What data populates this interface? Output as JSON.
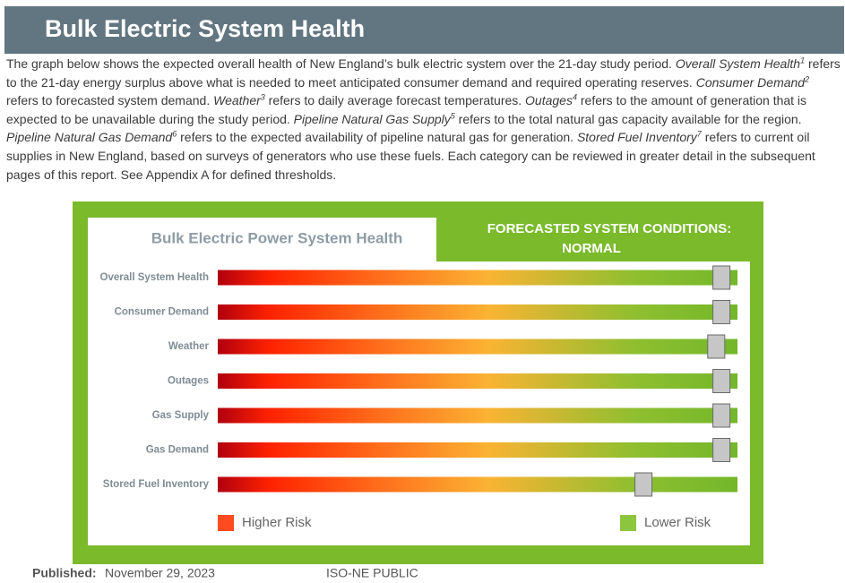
{
  "header": {
    "title": "Bulk Electric System Health"
  },
  "intro": {
    "segments": [
      {
        "text": "The graph below shows the expected overall health of New England’s bulk electric system over the 21-day study period. "
      },
      {
        "text": "Overall System Health",
        "italic": true
      },
      {
        "text": "1",
        "sup": true
      },
      {
        "text": " refers to the 21-day energy surplus above what is needed to meet anticipated consumer demand and required operating reserves. "
      },
      {
        "text": "Consumer Demand",
        "italic": true
      },
      {
        "text": "2",
        "sup": true
      },
      {
        "text": " refers to forecasted system demand. "
      },
      {
        "text": "Weather",
        "italic": true
      },
      {
        "text": "3",
        "sup": true
      },
      {
        "text": " refers to daily average forecast temperatures. "
      },
      {
        "text": "Outages",
        "italic": true
      },
      {
        "text": "4",
        "sup": true
      },
      {
        "text": " refers to the amount of generation that is expected to be unavailable during the study period. "
      },
      {
        "text": "Pipeline Natural Gas Supply",
        "italic": true
      },
      {
        "text": "5",
        "sup": true
      },
      {
        "text": " refers to the total natural gas capacity available for the region. "
      },
      {
        "text": "Pipeline Natural Gas Demand",
        "italic": true
      },
      {
        "text": "6",
        "sup": true
      },
      {
        "text": " refers to the expected availability of pipeline natural gas for generation. "
      },
      {
        "text": "Stored Fuel Inventory",
        "italic": true
      },
      {
        "text": "7",
        "sup": true
      },
      {
        "text": " refers to current oil supplies in New England, based on surveys of generators who use these fuels.  Each category can be reviewed in greater detail in the subsequent pages of this report. See Appendix A for defined thresholds."
      }
    ]
  },
  "chart_data": {
    "type": "gauge",
    "title": "Bulk Electric Power System Health",
    "status_label": "FORECASTED SYSTEM CONDITIONS:",
    "status": "NORMAL",
    "categories": [
      "Overall System Health",
      "Consumer Demand",
      "Weather",
      "Outages",
      "Gas Supply",
      "Gas Demand",
      "Stored Fuel Inventory"
    ],
    "values": [
      97,
      97,
      96,
      97,
      97,
      97,
      82
    ],
    "xlim": [
      0,
      100
    ],
    "legend": [
      {
        "name": "Higher Risk",
        "color": "#ff4b1f"
      },
      {
        "name": "Lower Risk",
        "color": "#8cc63f"
      }
    ]
  },
  "footer": {
    "published_label": "Published:",
    "published_date": "November 29, 2023",
    "classification": "ISO-NE PUBLIC"
  }
}
